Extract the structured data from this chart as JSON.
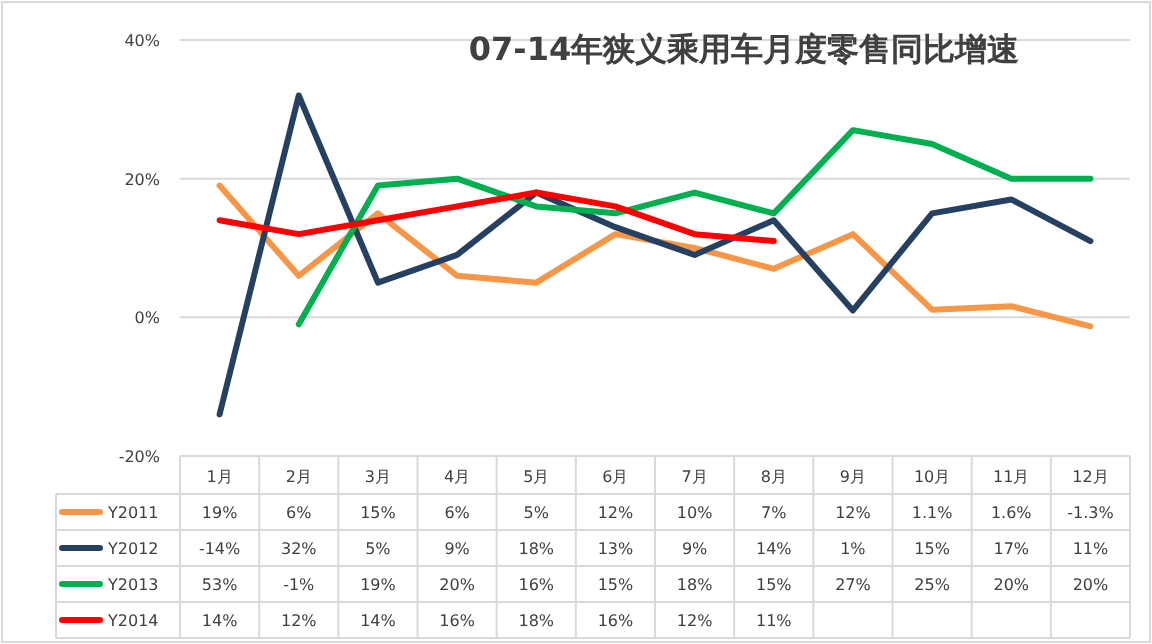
{
  "chart_data": {
    "type": "line",
    "title": "07-14年狭义乘用车月度零售同比增速",
    "categories": [
      "1月",
      "2月",
      "3月",
      "4月",
      "5月",
      "6月",
      "7月",
      "8月",
      "9月",
      "10月",
      "11月",
      "12月"
    ],
    "series": [
      {
        "name": "Y2011",
        "color": "#f79646",
        "values": [
          19,
          6,
          15,
          6,
          5,
          12,
          10,
          7,
          12,
          1.1,
          1.6,
          -1.3
        ],
        "value_labels": [
          "19%",
          "6%",
          "15%",
          "6%",
          "5%",
          "12%",
          "10%",
          "7%",
          "12%",
          "1.1%",
          "1.6%",
          "-1.3%"
        ]
      },
      {
        "name": "Y2012",
        "color": "#254061",
        "values": [
          -14,
          32,
          5,
          9,
          18,
          13,
          9,
          14,
          1,
          15,
          17,
          11
        ],
        "value_labels": [
          "-14%",
          "32%",
          "5%",
          "9%",
          "18%",
          "13%",
          "9%",
          "14%",
          "1%",
          "15%",
          "17%",
          "11%"
        ]
      },
      {
        "name": "Y2013",
        "color": "#00b050",
        "values": [
          null,
          -1,
          19,
          20,
          16,
          15,
          18,
          15,
          27,
          25,
          20,
          20
        ],
        "value_labels": [
          "53%",
          "-1%",
          "19%",
          "20%",
          "16%",
          "15%",
          "18%",
          "15%",
          "27%",
          "25%",
          "20%",
          "20%"
        ]
      },
      {
        "name": "Y2014",
        "color": "#ff0000",
        "values": [
          14,
          12,
          14,
          16,
          18,
          16,
          12,
          11,
          null,
          null,
          null,
          null
        ],
        "value_labels": [
          "14%",
          "12%",
          "14%",
          "16%",
          "18%",
          "16%",
          "12%",
          "11%",
          null,
          null,
          null,
          null
        ]
      }
    ],
    "ylim": [
      -20,
      40
    ],
    "yticks": [
      {
        "value": -20,
        "label": "-20%"
      },
      {
        "value": 0,
        "label": "0%"
      },
      {
        "value": 20,
        "label": "20%"
      },
      {
        "value": 40,
        "label": "40%"
      }
    ],
    "grid": "y",
    "legend": "bottom",
    "line_style": "solid",
    "marker": "none"
  }
}
